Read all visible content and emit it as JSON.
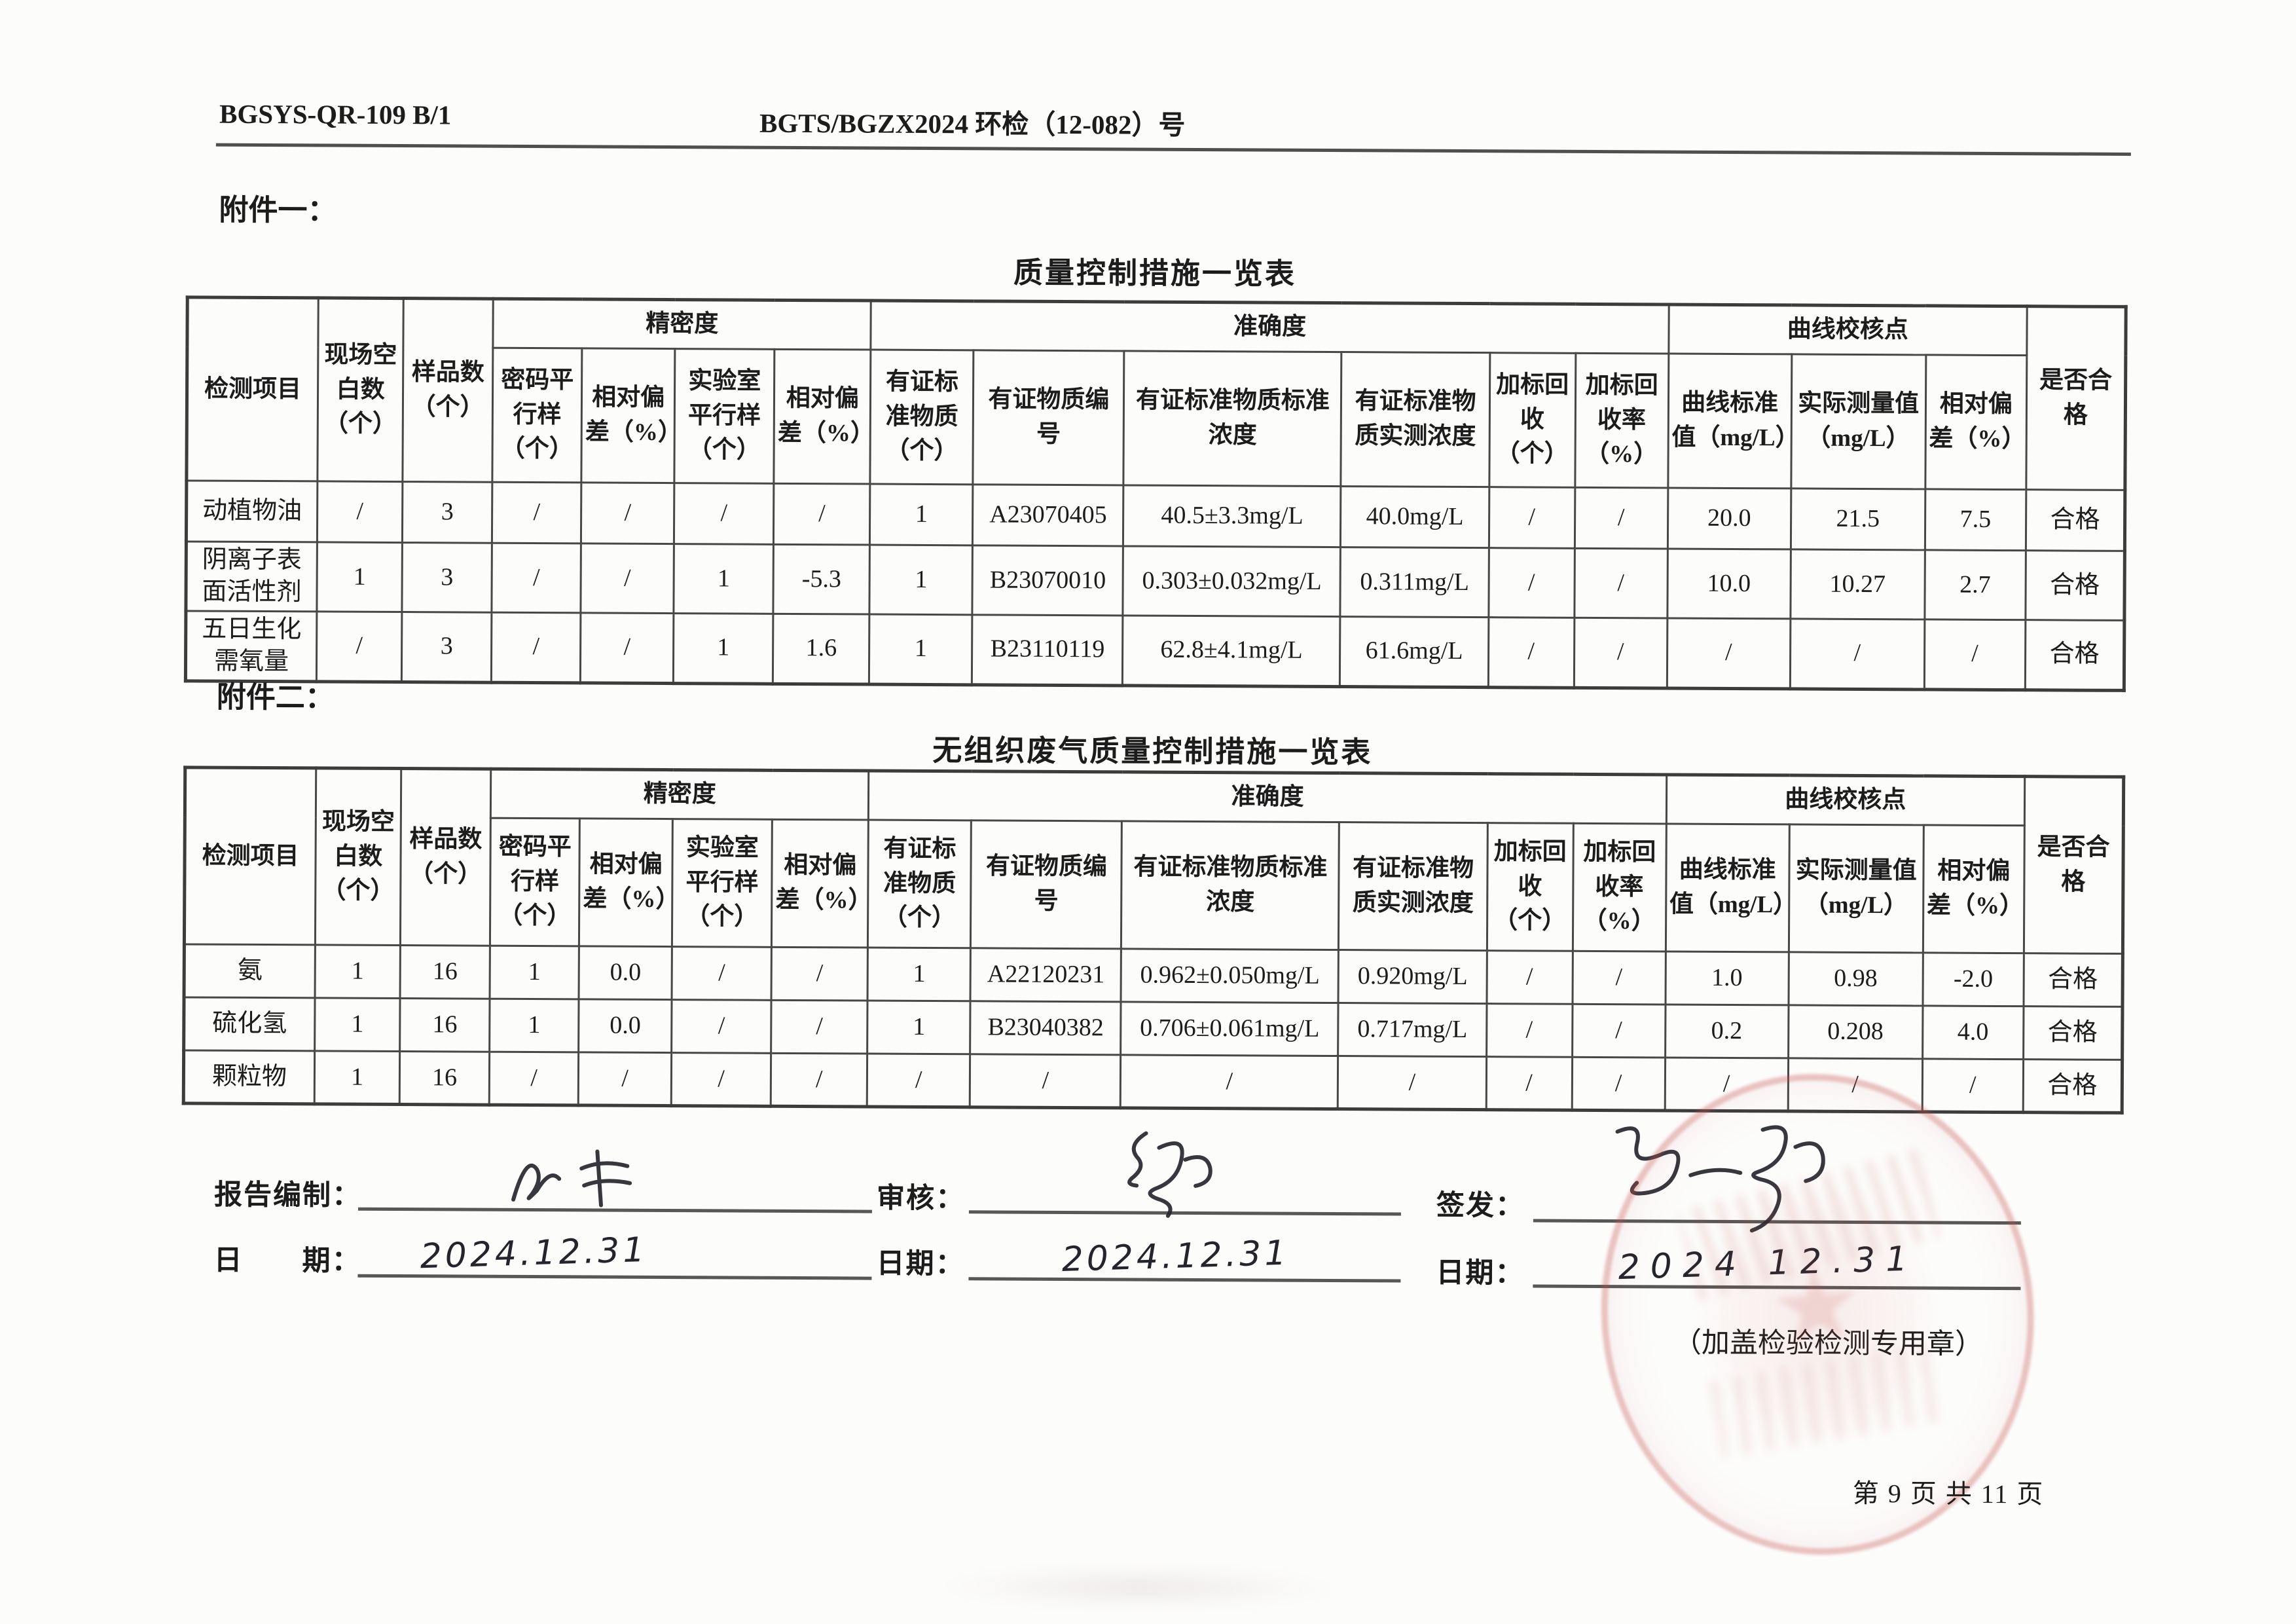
{
  "page": {
    "header_left": "BGSYS-QR-109 B/1",
    "header_center": "BGTS/BGZX2024 环检（12-082）号",
    "footer_page": "第 9 页 共 11 页"
  },
  "columns": {
    "item": "检测项目",
    "site_blank": "现场空白数（个）",
    "sample_count": "样品数（个）",
    "precision_group": "精密度",
    "coded_parallel": "密码平行样（个）",
    "rel_dev1": "相对偏差（%）",
    "lab_parallel": "实验室平行样（个）",
    "rel_dev2": "相对偏差（%）",
    "accuracy_group": "准确度",
    "crm_count": "有证标准物质（个）",
    "crm_id": "有证物质编号",
    "crm_std_conc": "有证标准物质标准浓度",
    "crm_measured_conc": "有证标准物质实测浓度",
    "spike_count": "加标回收（个）",
    "spike_recovery": "加标回收率（%）",
    "curve_group": "曲线校核点",
    "curve_std": "曲线标准值（mg/L）",
    "curve_measured": "实际测量值（mg/L）",
    "rel_dev3": "相对偏差（%）",
    "qualified": "是否合格"
  },
  "attachment1": {
    "label": "附件一：",
    "title": "质量控制措施一览表",
    "rows": [
      [
        "动植物油",
        "/",
        "3",
        "/",
        "/",
        "/",
        "/",
        "1",
        "A23070405",
        "40.5±3.3mg/L",
        "40.0mg/L",
        "/",
        "/",
        "20.0",
        "21.5",
        "7.5",
        "合格"
      ],
      [
        "阴离子表面活性剂",
        "1",
        "3",
        "/",
        "/",
        "1",
        "-5.3",
        "1",
        "B23070010",
        "0.303±0.032mg/L",
        "0.311mg/L",
        "/",
        "/",
        "10.0",
        "10.27",
        "2.7",
        "合格"
      ],
      [
        "五日生化需氧量",
        "/",
        "3",
        "/",
        "/",
        "1",
        "1.6",
        "1",
        "B23110119",
        "62.8±4.1mg/L",
        "61.6mg/L",
        "/",
        "/",
        "/",
        "/",
        "/",
        "合格"
      ]
    ]
  },
  "attachment2": {
    "label": "附件二：",
    "title": "无组织废气质量控制措施一览表",
    "rows": [
      [
        "氨",
        "1",
        "16",
        "1",
        "0.0",
        "/",
        "/",
        "1",
        "A22120231",
        "0.962±0.050mg/L",
        "0.920mg/L",
        "/",
        "/",
        "1.0",
        "0.98",
        "-2.0",
        "合格"
      ],
      [
        "硫化氢",
        "1",
        "16",
        "1",
        "0.0",
        "/",
        "/",
        "1",
        "B23040382",
        "0.706±0.061mg/L",
        "0.717mg/L",
        "/",
        "/",
        "0.2",
        "0.208",
        "4.0",
        "合格"
      ],
      [
        "颗粒物",
        "1",
        "16",
        "/",
        "/",
        "/",
        "/",
        "/",
        "/",
        "/",
        "/",
        "/",
        "/",
        "/",
        "/",
        "/",
        "合格"
      ]
    ]
  },
  "signoff": {
    "prepared_label": "报告编制：",
    "prepared_date_label": "日　　期：",
    "prepared_date": "2024.12.31",
    "review_label": "审核：",
    "review_date_label": "日期：",
    "review_date": "2024.12.31",
    "issue_label": "签发：",
    "issue_date_label": "日期：",
    "issue_date": "2024 12.31",
    "stamp_note": "（加盖检验检测专用章）"
  }
}
